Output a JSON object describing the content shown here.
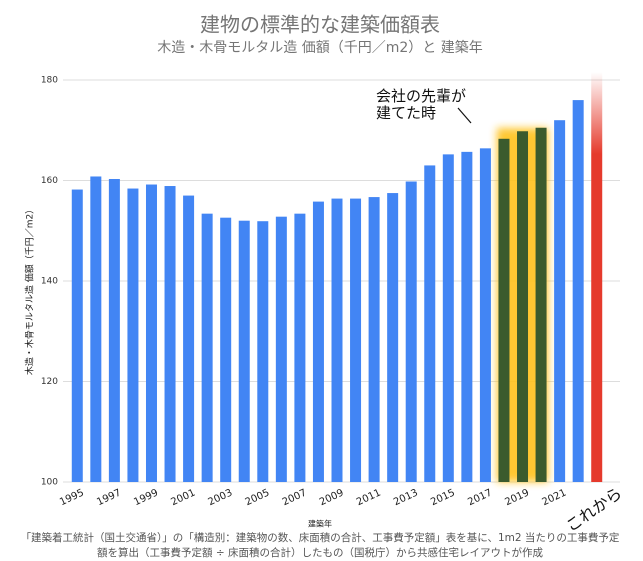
{
  "chart_data": {
    "type": "bar",
    "title": "建物の標準的な建築価額表",
    "subtitle": "木造・木骨モルタル造 価額（千円／m2）と 建築年",
    "y_label": "木造・木骨モルタル造 価額（千円／m2）",
    "x_label": "建築年",
    "annotation": "会社の先輩が\n建てた時",
    "future_label": "これから",
    "footnote": [
      "「建築着工統計（国土交通省）」の「構造別：建築物の数、床面積の合計、工事費予定額」表を基に、1m2 当たりの工事費予定",
      "額を算出（工事費予定額 ÷ 床面積の合計）したもの（国税庁）から共感住宅レイアウトが作成"
    ],
    "categories": [
      "1995",
      null,
      "1997",
      null,
      "1999",
      null,
      "2001",
      null,
      "2003",
      null,
      "2005",
      null,
      "2007",
      null,
      "2009",
      null,
      "2011",
      null,
      "2013",
      null,
      "2015",
      null,
      "2017",
      null,
      "2019",
      null,
      "2021",
      null
    ],
    "values": [
      158.2,
      160.8,
      160.3,
      158.4,
      159.2,
      158.9,
      157.0,
      153.4,
      152.6,
      152.0,
      151.9,
      152.8,
      153.4,
      155.8,
      156.4,
      156.4,
      156.7,
      157.5,
      159.8,
      163.0,
      165.2,
      165.7,
      166.4,
      168.3,
      169.8,
      170.5,
      172.0,
      176.0
    ],
    "colors": [
      "#4285f4",
      "#4285f4",
      "#4285f4",
      "#4285f4",
      "#4285f4",
      "#4285f4",
      "#4285f4",
      "#4285f4",
      "#4285f4",
      "#4285f4",
      "#4285f4",
      "#4285f4",
      "#4285f4",
      "#4285f4",
      "#4285f4",
      "#4285f4",
      "#4285f4",
      "#4285f4",
      "#4285f4",
      "#4285f4",
      "#4285f4",
      "#4285f4",
      "#4285f4",
      "#3b5b2d",
      "#3b5b2d",
      "#3b5b2d",
      "#4285f4",
      "#4285f4"
    ],
    "future_color": "#e53a2c",
    "ylim": [
      100,
      180
    ],
    "yticks": [
      100,
      120,
      140,
      160,
      180
    ],
    "grid": true
  }
}
